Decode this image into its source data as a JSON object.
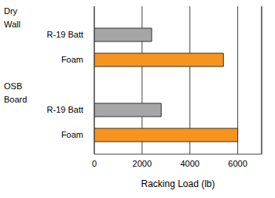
{
  "chart_data": {
    "type": "bar",
    "orientation": "horizontal",
    "categories": [
      "Dry Wall",
      "OSB Board"
    ],
    "series": [
      {
        "name": "R-19 Batt",
        "color": "#a6a6a6",
        "values": [
          2400,
          2800
        ]
      },
      {
        "name": "Foam",
        "color": "#f7941d",
        "values": [
          5400,
          6000
        ]
      }
    ],
    "xlabel": "Racking Load (lb)",
    "xlim": [
      0,
      7000
    ],
    "xticks": [
      0,
      2000,
      4000,
      6000
    ],
    "grid": true
  }
}
